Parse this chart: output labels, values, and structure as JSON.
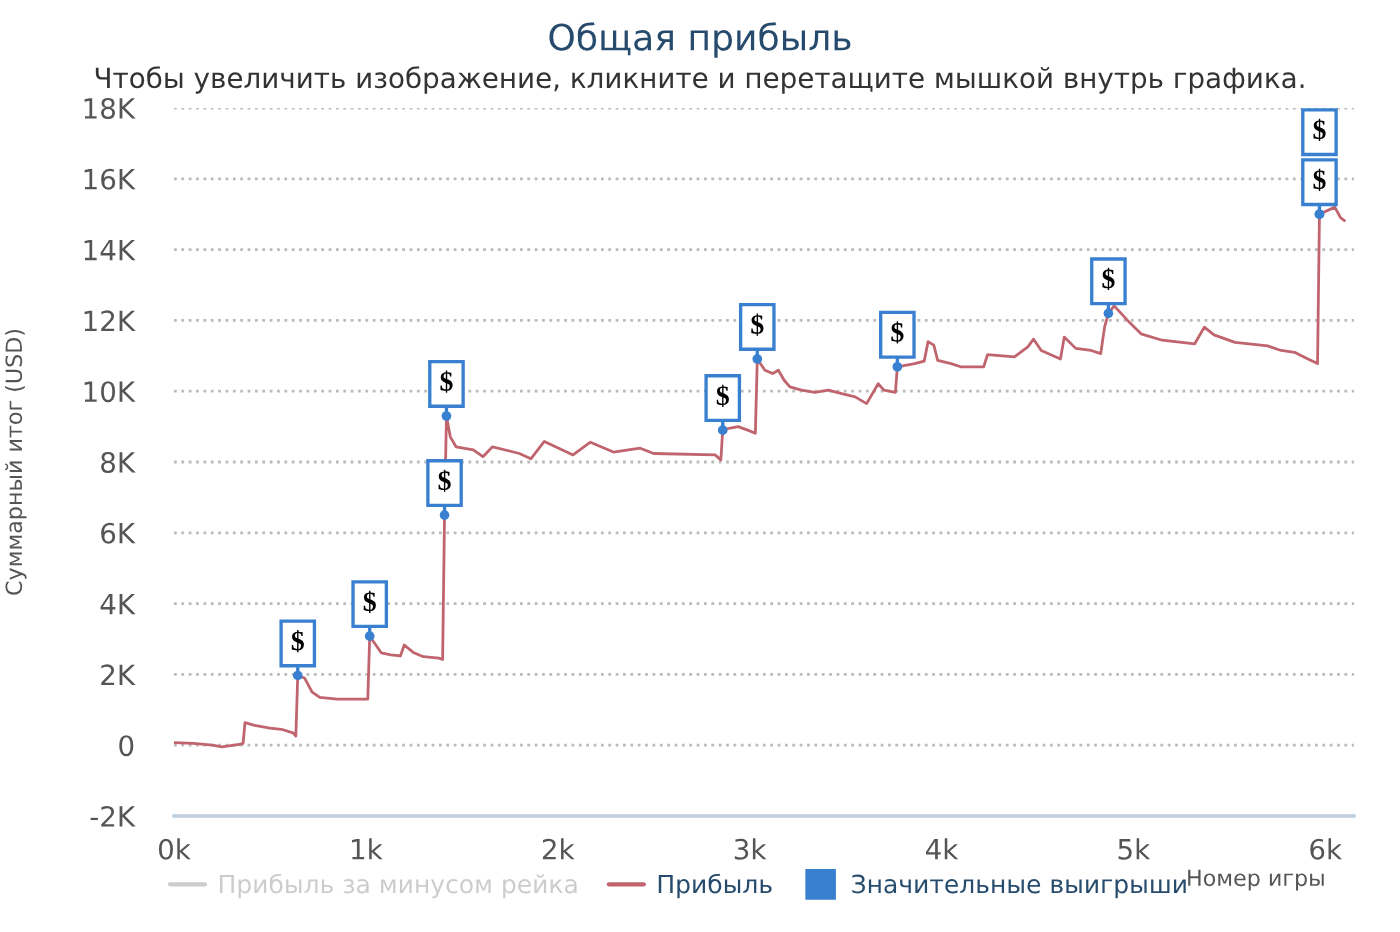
{
  "chart_data": {
    "type": "line",
    "title": "Общая прибыль",
    "subtitle": "Чтобы увеличить изображение, кликните и перетащите мышкой внутрь графика.",
    "xlabel": "Номер игры",
    "ylabel": "Суммарный итог (USD)",
    "xlim": [
      0,
      6150
    ],
    "xticks": [
      {
        "value": 0,
        "label": "0k"
      },
      {
        "value": 1000,
        "label": "1k"
      },
      {
        "value": 2000,
        "label": "2k"
      },
      {
        "value": 3000,
        "label": "3k"
      },
      {
        "value": 4000,
        "label": "4k"
      },
      {
        "value": 5000,
        "label": "5k"
      },
      {
        "value": 6000,
        "label": "6k"
      }
    ],
    "ylim": [
      -2000,
      18000
    ],
    "yticks": [
      {
        "value": -2000,
        "label": "-2K"
      },
      0,
      {
        "value": 2000,
        "label": "2K"
      },
      {
        "value": 4000,
        "label": "4K"
      },
      {
        "value": 6000,
        "label": "6K"
      },
      {
        "value": 8000,
        "label": "8K"
      },
      {
        "value": 10000,
        "label": "10K"
      },
      {
        "value": 12000,
        "label": "12K"
      },
      {
        "value": 14000,
        "label": "14K"
      },
      {
        "value": 16000,
        "label": "16K"
      },
      {
        "value": 18000,
        "label": "18K"
      }
    ],
    "grid": "y",
    "legend": "bottom",
    "series": [
      {
        "name": "Прибыль за минусом рейка",
        "color": "#cccccc"
      },
      {
        "name": "Прибыль",
        "color": "#c0646e",
        "x": [
          0,
          100,
          200,
          250,
          340,
          360,
          370,
          420,
          500,
          560,
          620,
          635,
          645,
          680,
          720,
          760,
          850,
          950,
          1010,
          1020,
          1080,
          1130,
          1180,
          1200,
          1250,
          1300,
          1380,
          1400,
          1410,
          1420,
          1440,
          1470,
          1560,
          1610,
          1660,
          1800,
          1860,
          1930,
          2080,
          2170,
          2290,
          2430,
          2500,
          2820,
          2850,
          2860,
          2900,
          2940,
          2990,
          3030,
          3040,
          3080,
          3120,
          3150,
          3180,
          3210,
          3270,
          3340,
          3410,
          3480,
          3550,
          3610,
          3670,
          3700,
          3760,
          3770,
          3860,
          3910,
          3930,
          3960,
          3980,
          4050,
          4100,
          4220,
          4240,
          4380,
          4450,
          4480,
          4520,
          4620,
          4640,
          4700,
          4780,
          4830,
          4850,
          4870,
          4900,
          4970,
          5040,
          5150,
          5320,
          5370,
          5420,
          5530,
          5700,
          5770,
          5840,
          5910,
          5960,
          5970,
          6050,
          6080,
          6100
        ],
        "values": [
          70,
          50,
          0,
          -50,
          20,
          50,
          640,
          560,
          480,
          450,
          350,
          260,
          1970,
          1900,
          1500,
          1350,
          1300,
          1300,
          1300,
          3080,
          2610,
          2550,
          2520,
          2830,
          2610,
          2500,
          2460,
          2420,
          6500,
          9300,
          8710,
          8430,
          8340,
          8150,
          8430,
          8240,
          8090,
          8580,
          8200,
          8560,
          8280,
          8390,
          8240,
          8200,
          8060,
          8900,
          8960,
          9000,
          8900,
          8810,
          10910,
          10590,
          10500,
          10590,
          10310,
          10120,
          10030,
          9970,
          10030,
          9930,
          9840,
          9650,
          10210,
          10030,
          9970,
          10690,
          10780,
          10850,
          11400,
          11300,
          10870,
          10780,
          10690,
          10690,
          11030,
          10970,
          11250,
          11470,
          11150,
          10910,
          11530,
          11210,
          11150,
          11060,
          11810,
          12200,
          12410,
          12000,
          11620,
          11440,
          11340,
          11810,
          11590,
          11380,
          11280,
          11150,
          11100,
          10910,
          10780,
          15000,
          15200,
          14900,
          14820
        ]
      },
      {
        "name": "Значительные выигрыши",
        "type": "scatter",
        "color": "#3a80d0",
        "marker": "circle",
        "x": [
          645,
          1020,
          1410,
          1420,
          2860,
          3040,
          3770,
          4870,
          5970,
          5970
        ],
        "values": [
          1970,
          3080,
          6500,
          9300,
          8900,
          10910,
          10690,
          12200,
          15000,
          15000
        ],
        "value_labels": [
          "$",
          "$",
          "$",
          "$",
          "$",
          "$",
          "$",
          "$",
          "$",
          "$"
        ]
      }
    ]
  }
}
